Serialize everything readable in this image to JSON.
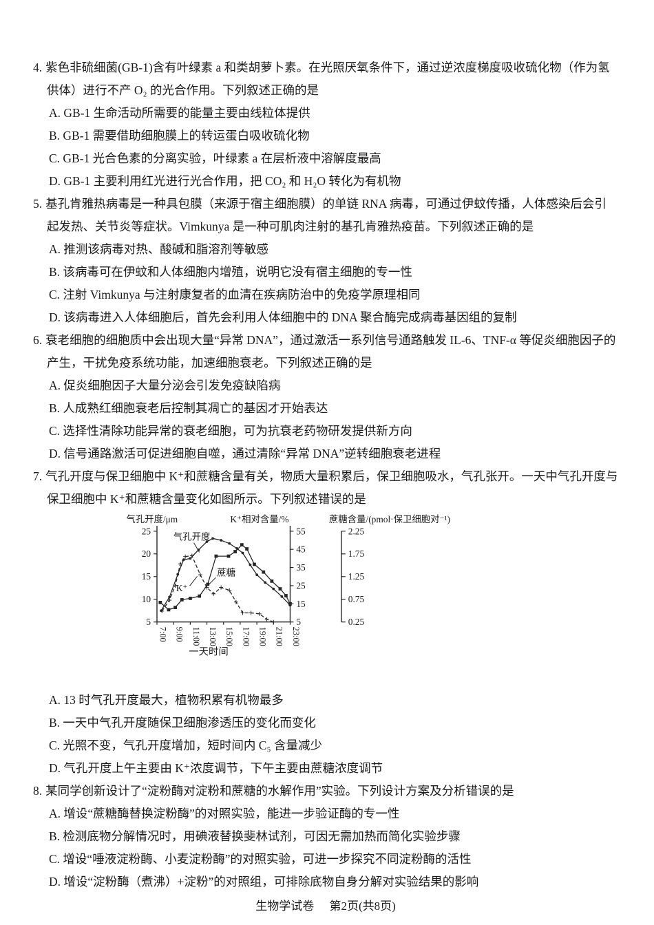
{
  "page": {
    "footer_left": "生物学试卷",
    "footer_right": "第2页(共8页)"
  },
  "questions": [
    {
      "number": "4.",
      "stem": "紫色非硫细菌(GB-1)含有叶绿素 a 和类胡萝卜素。在光照厌氧条件下，通过逆浓度梯度吸收硫化物（作为氢供体）进行不产 O₂ 的光合作用。下列叙述正确的是",
      "options": [
        "A. GB-1 生命活动所需要的能量主要由线粒体提供",
        "B. GB-1 需要借助细胞膜上的转运蛋白吸收硫化物",
        "C. GB-1 光合色素的分离实验，叶绿素 a 在层析液中溶解度最高",
        "D. GB-1 主要利用红光进行光合作用，把 CO₂ 和 H₂O 转化为有机物"
      ]
    },
    {
      "number": "5.",
      "stem": "基孔肯雅热病毒是一种具包膜（来源于宿主细胞膜）的单链 RNA 病毒，可通过伊蚊传播，人体感染后会引起发热、关节炎等症状。Vimkunya 是一种可肌肉注射的基孔肯雅热疫苗。下列叙述正确的是",
      "options": [
        "A. 推测该病毒对热、酸碱和脂溶剂等敏感",
        "B. 该病毒可在伊蚊和人体细胞内增殖，说明它没有宿主细胞的专一性",
        "C. 注射 Vimkunya 与注射康复者的血清在疾病防治中的免疫学原理相同",
        "D. 该病毒进入人体细胞后，首先会利用人体细胞中的 DNA 聚合酶完成病毒基因组的复制"
      ]
    },
    {
      "number": "6.",
      "stem": "衰老细胞的细胞质中会出现大量“异常 DNA”，通过激活一系列信号通路触发 IL-6、TNF-α 等促炎细胞因子的产生，干扰免疫系统功能，加速细胞衰老。下列叙述正确的是",
      "options": [
        "A. 促炎细胞因子大量分泌会引发免疫缺陷病",
        "B. 人成熟红细胞衰老后控制其凋亡的基因才开始表达",
        "C. 选择性清除功能异常的衰老细胞，可为抗衰老药物研发提供新方向",
        "D. 信号通路激活可促进细胞自噬，通过清除“异常 DNA”逆转细胞衰老进程"
      ]
    },
    {
      "number": "7.",
      "stem": "气孔开度与保卫细胞中 K⁺和蔗糖含量有关，物质大量积累后，保卫细胞吸水，气孔张开。一天中气孔开度与保卫细胞中 K⁺和蔗糖含量变化如图所示。下列叙述错误的是",
      "has_chart": true,
      "options": [
        "A. 13 时气孔开度最大，植物积累有机物最多",
        "B. 一天中气孔开度随保卫细胞渗透压的变化而变化",
        "C. 光照不变，气孔开度增加，短时间内 C₅ 含量减少",
        "D. 气孔开度上午主要由 K⁺浓度调节，下午主要由蔗糖浓度调节"
      ]
    },
    {
      "number": "8.",
      "stem": "某同学创新设计了“淀粉酶对淀粉和蔗糖的水解作用”实验。下列设计方案及分析错误的是",
      "options": [
        "A. 增设“蔗糖酶替换淀粉酶”的对照实验，能进一步验证酶的专一性",
        "B. 检测底物分解情况时，用碘液替换斐林试剂，可因无需加热而简化实验步骤",
        "C. 增设“唾液淀粉酶、小麦淀粉酶”的对照实验，可进一步探究不同淀粉酶的活性",
        "D. 增设“淀粉酶（煮沸）+淀粉”的对照组，可排除底物自身分解对实验结果的影响"
      ]
    }
  ],
  "chart_data": {
    "type": "line",
    "xlabel": "一天时间",
    "x_ticks": [
      "7:00",
      "9:00",
      "11:00",
      "13:00",
      "15:00",
      "17:00",
      "19:00",
      "21:00",
      "23:00"
    ],
    "x_tick_hours": [
      7,
      9,
      11,
      13,
      15,
      17,
      19,
      21,
      23
    ],
    "x_range": [
      7,
      23
    ],
    "grid": false,
    "axes": [
      {
        "id": "stomata",
        "label": "气孔开度/μm",
        "side": "left",
        "ticks": [
          5,
          10,
          15,
          20,
          25
        ],
        "range": [
          5,
          25
        ]
      },
      {
        "id": "k",
        "label": "K⁺相对含量/%",
        "side": "right",
        "ticks": [
          5,
          15,
          25,
          35,
          45,
          55
        ],
        "range": [
          5,
          55
        ]
      },
      {
        "id": "sucrose",
        "label": "蔗糖含量/(pmol·保卫细胞对⁻¹)",
        "side": "far-right",
        "ticks": [
          0.25,
          0.75,
          1.25,
          1.75,
          2.25
        ],
        "range": [
          0.25,
          2.25
        ]
      }
    ],
    "series": [
      {
        "name": "气孔开度",
        "axis": "stomata",
        "style": "solid",
        "marker": "dot",
        "x": [
          7.5,
          8.5,
          9.5,
          10.2,
          11.0,
          12.0,
          13.0,
          13.7,
          14.7,
          15.7,
          16.6,
          17.3,
          18.2,
          19.0,
          20.0,
          21.0,
          22.0,
          23.0
        ],
        "values": [
          7.5,
          10.5,
          15.5,
          18.7,
          19.0,
          20.9,
          22.7,
          23.4,
          23.0,
          22.3,
          21.2,
          20.2,
          17.6,
          15.4,
          13.7,
          12.3,
          10.6,
          8.7
        ]
      },
      {
        "name": "K⁺",
        "axis": "k",
        "style": "dashed",
        "marker": "plus",
        "x": [
          7.6,
          8.5,
          9.2,
          9.8,
          10.4,
          11.2,
          12.2,
          13.0,
          13.8,
          14.7,
          15.7,
          16.5,
          17.3,
          18.3,
          19.3,
          20.2,
          21.0
        ],
        "values": [
          11,
          17,
          25,
          37,
          41,
          41.5,
          31,
          24,
          20.5,
          24,
          22.5,
          16,
          10,
          10,
          9.5,
          6.5,
          5
        ]
      },
      {
        "name": "蔗糖",
        "axis": "sucrose",
        "style": "solid",
        "marker": "square",
        "x": [
          7.4,
          8.4,
          9.2,
          10.0,
          11.0,
          12.1,
          13.1,
          14.1,
          15.6,
          16.4,
          17.2,
          17.8,
          18.7,
          19.8,
          20.8,
          21.8,
          22.5,
          23.0
        ],
        "values": [
          0.68,
          0.52,
          0.57,
          0.74,
          0.77,
          0.82,
          1.08,
          1.7,
          1.7,
          1.8,
          1.95,
          1.86,
          1.52,
          1.35,
          1.15,
          0.98,
          0.83,
          0.65
        ]
      }
    ],
    "annotations": [
      {
        "text": "气孔开度",
        "x": 72,
        "y": 38,
        "leader": [
          102,
          42,
          110,
          56
        ]
      },
      {
        "text": "K⁺",
        "x": 76,
        "y": 113,
        "leader": [
          96,
          105,
          107,
          91
        ]
      },
      {
        "text": "蔗糖",
        "x": 136,
        "y": 90,
        "leader": [
          134,
          93,
          124,
          103
        ]
      }
    ]
  }
}
